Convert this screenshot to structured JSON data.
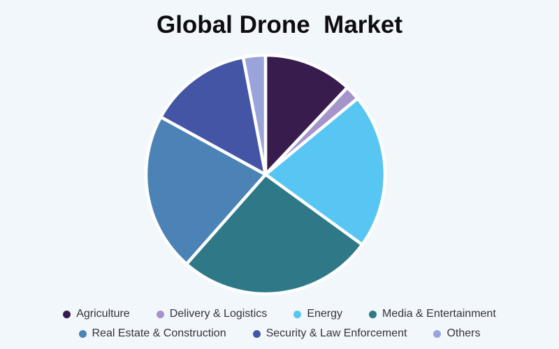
{
  "page": {
    "background_color": "#f2f7fb",
    "title_color": "#0d0c11",
    "legend_text_color": "#34333e"
  },
  "chart_data": {
    "type": "pie",
    "title": "Global Drone  Market",
    "labels": [
      "Agriculture",
      "Delivery & Logistics",
      "Energy",
      "Media & Entertainment",
      "Real Estate & Construction",
      "Security & Law Enforcement",
      "Others"
    ],
    "values": [
      12,
      2,
      21,
      26.5,
      21.5,
      14,
      3
    ],
    "unit": "percent (estimated from slice angles; no data labels shown)",
    "colors": [
      "#381c4d",
      "#a494cb",
      "#58c6f2",
      "#2e7888",
      "#4b83b7",
      "#4355a4",
      "#9aa4db"
    ],
    "start_angle_deg": 0,
    "direction": "clockwise",
    "separator_color": "#ffffff",
    "grid": false,
    "legend_position": "bottom",
    "legend_rows": [
      [
        0,
        1,
        2,
        3
      ],
      [
        4,
        5,
        6
      ]
    ]
  }
}
